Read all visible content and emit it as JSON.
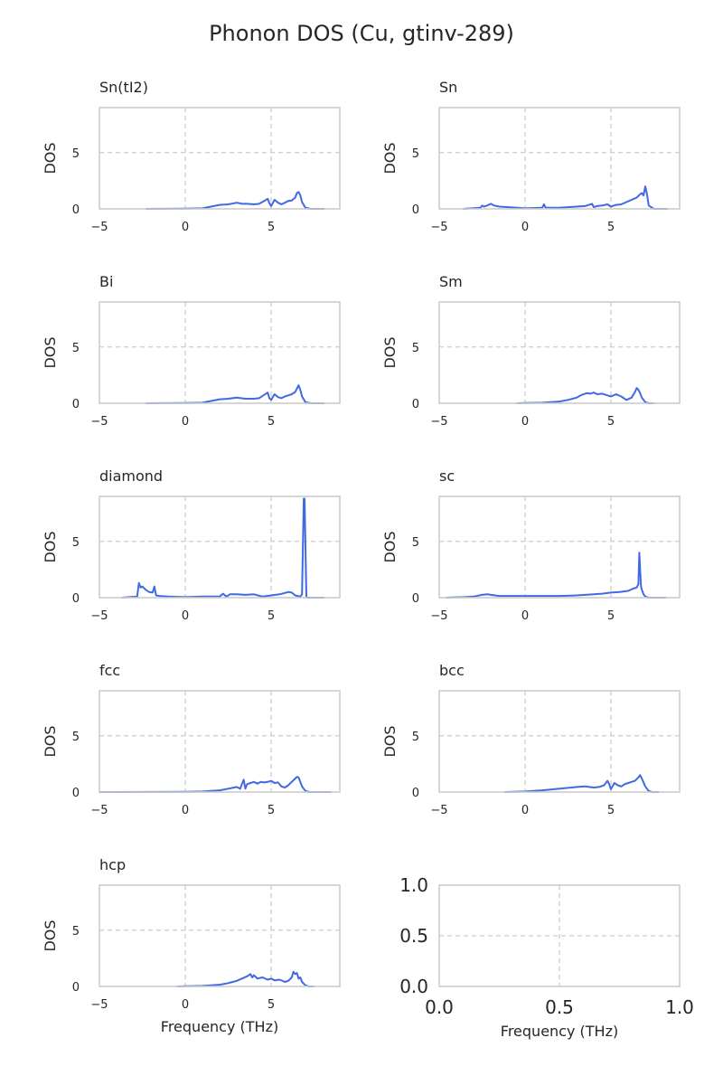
{
  "figure": {
    "title": "Phonon DOS (Cu, gtinv-289)",
    "line_color": "#4169e1",
    "frame_color": "#cccccc",
    "grid_color": "#cccccc"
  },
  "chart_data": [
    {
      "type": "line",
      "title": "Sn(tI2)",
      "ylabel": "DOS",
      "xlabel": "",
      "xlim": [
        -5,
        9
      ],
      "ylim": [
        0,
        9
      ],
      "xticks": [
        -5,
        0,
        5
      ],
      "yticks": [
        0,
        5
      ],
      "grid": true,
      "series": [
        {
          "x": [
            -2.3,
            0,
            1,
            1.5,
            2,
            2.5,
            3,
            3.3,
            3.6,
            4,
            4.3,
            4.6,
            4.8,
            4.9,
            5,
            5.2,
            5.4,
            5.6,
            5.8,
            6,
            6.2,
            6.4,
            6.5,
            6.6,
            6.7,
            6.8,
            7,
            7.3,
            8.1
          ],
          "y": [
            0,
            0.02,
            0.05,
            0.2,
            0.35,
            0.4,
            0.55,
            0.45,
            0.45,
            0.4,
            0.45,
            0.7,
            0.9,
            0.5,
            0.25,
            0.8,
            0.55,
            0.4,
            0.55,
            0.7,
            0.75,
            1.0,
            1.4,
            1.5,
            1.2,
            0.6,
            0.1,
            0,
            0
          ]
        }
      ]
    },
    {
      "type": "line",
      "title": "Sn",
      "ylabel": "DOS",
      "xlabel": "",
      "xlim": [
        -5,
        9
      ],
      "ylim": [
        0,
        9
      ],
      "xticks": [
        -5,
        0,
        5
      ],
      "yticks": [
        0,
        5
      ],
      "grid": true,
      "series": [
        {
          "x": [
            -3.6,
            -2.6,
            -2.5,
            -2.4,
            -2.2,
            -2,
            -1.8,
            -1.5,
            -1,
            0,
            1,
            1.1,
            1.2,
            2,
            3,
            3.5,
            3.9,
            4,
            4.2,
            4.5,
            4.8,
            5,
            5.3,
            5.6,
            5.9,
            6.2,
            6.5,
            6.7,
            6.8,
            6.9,
            7,
            7.1,
            7.2,
            7.5,
            8.3
          ],
          "y": [
            0,
            0.1,
            0.3,
            0.2,
            0.3,
            0.45,
            0.3,
            0.2,
            0.15,
            0.05,
            0.1,
            0.4,
            0.1,
            0.1,
            0.2,
            0.25,
            0.45,
            0.15,
            0.25,
            0.3,
            0.4,
            0.2,
            0.35,
            0.4,
            0.6,
            0.8,
            1.0,
            1.3,
            1.4,
            1.2,
            2.0,
            1.3,
            0.3,
            0,
            0
          ]
        }
      ]
    },
    {
      "type": "line",
      "title": "Bi",
      "ylabel": "DOS",
      "xlabel": "",
      "xlim": [
        -5,
        9
      ],
      "ylim": [
        0,
        9
      ],
      "xticks": [
        -5,
        0,
        5
      ],
      "yticks": [
        0,
        5
      ],
      "grid": true,
      "series": [
        {
          "x": [
            -2.3,
            0,
            1,
            1.5,
            2,
            2.5,
            3,
            3.5,
            4,
            4.3,
            4.6,
            4.8,
            4.9,
            5,
            5.2,
            5.4,
            5.6,
            5.8,
            6,
            6.2,
            6.4,
            6.5,
            6.6,
            6.7,
            6.8,
            7,
            7.3,
            8.1
          ],
          "y": [
            0,
            0.02,
            0.05,
            0.2,
            0.35,
            0.4,
            0.5,
            0.4,
            0.4,
            0.45,
            0.75,
            0.95,
            0.45,
            0.3,
            0.8,
            0.55,
            0.45,
            0.6,
            0.7,
            0.8,
            1.0,
            1.3,
            1.6,
            1.2,
            0.6,
            0.1,
            0,
            0
          ]
        }
      ]
    },
    {
      "type": "line",
      "title": "Sm",
      "ylabel": "DOS",
      "xlabel": "",
      "xlim": [
        -5,
        9
      ],
      "ylim": [
        0,
        9
      ],
      "xticks": [
        -5,
        0,
        5
      ],
      "yticks": [
        0,
        5
      ],
      "grid": true,
      "series": [
        {
          "x": [
            -0.5,
            0,
            1,
            2,
            2.5,
            3,
            3.3,
            3.6,
            3.8,
            4,
            4.2,
            4.5,
            4.8,
            5,
            5.3,
            5.6,
            5.9,
            6.2,
            6.4,
            6.5,
            6.6,
            6.7,
            6.8,
            7,
            7.2,
            7.5
          ],
          "y": [
            0,
            0.02,
            0.05,
            0.15,
            0.3,
            0.5,
            0.75,
            0.9,
            0.85,
            0.95,
            0.8,
            0.85,
            0.7,
            0.6,
            0.8,
            0.6,
            0.3,
            0.5,
            1.0,
            1.35,
            1.2,
            0.9,
            0.5,
            0.1,
            0,
            0
          ]
        }
      ]
    },
    {
      "type": "line",
      "title": "diamond",
      "ylabel": "DOS",
      "xlabel": "",
      "xlim": [
        -5,
        9
      ],
      "ylim": [
        0,
        9
      ],
      "xticks": [
        -5,
        0,
        5
      ],
      "yticks": [
        0,
        5
      ],
      "grid": true,
      "series": [
        {
          "x": [
            -3.7,
            -2.8,
            -2.7,
            -2.6,
            -2.5,
            -2.3,
            -2.1,
            -1.9,
            -1.8,
            -1.7,
            -1.5,
            -1,
            0,
            1,
            2,
            2.2,
            2.4,
            2.6,
            3,
            3.5,
            4,
            4.5,
            5,
            5.5,
            6,
            6.2,
            6.4,
            6.7,
            6.8,
            6.9,
            6.95,
            7.05,
            7.1,
            7.5,
            8.1
          ],
          "y": [
            0,
            0.1,
            1.3,
            0.9,
            1.0,
            0.7,
            0.5,
            0.45,
            1.0,
            0.2,
            0.15,
            0.1,
            0.05,
            0.1,
            0.1,
            0.35,
            0.1,
            0.3,
            0.3,
            0.25,
            0.3,
            0.1,
            0.2,
            0.3,
            0.5,
            0.45,
            0.2,
            0.1,
            0.3,
            8.8,
            8.8,
            0.1,
            0,
            0,
            0
          ]
        }
      ]
    },
    {
      "type": "line",
      "title": "sc",
      "ylabel": "DOS",
      "xlabel": "",
      "xlim": [
        -5,
        9
      ],
      "ylim": [
        0,
        9
      ],
      "xticks": [
        -5,
        0,
        5
      ],
      "yticks": [
        0,
        5
      ],
      "grid": true,
      "series": [
        {
          "x": [
            -4.6,
            -3.5,
            -3,
            -2.5,
            -2.2,
            -2,
            -1.5,
            -1,
            0,
            1,
            2,
            3,
            4,
            4.5,
            5,
            5.5,
            6,
            6.3,
            6.5,
            6.6,
            6.65,
            6.7,
            6.75,
            6.8,
            6.9,
            7,
            7.2,
            7.5,
            8.2
          ],
          "y": [
            0,
            0.05,
            0.1,
            0.25,
            0.3,
            0.25,
            0.15,
            0.15,
            0.15,
            0.15,
            0.15,
            0.2,
            0.3,
            0.35,
            0.45,
            0.5,
            0.6,
            0.8,
            0.9,
            1.2,
            4.0,
            2.5,
            1.0,
            0.7,
            0.3,
            0.1,
            0,
            0,
            0
          ]
        }
      ]
    },
    {
      "type": "line",
      "title": "fcc",
      "ylabel": "DOS",
      "xlabel": "",
      "xlim": [
        -5,
        9
      ],
      "ylim": [
        0,
        9
      ],
      "xticks": [
        -5,
        0,
        5
      ],
      "yticks": [
        0,
        5
      ],
      "grid": true,
      "series": [
        {
          "x": [
            -5,
            0,
            1,
            2,
            2.5,
            3,
            3.2,
            3.4,
            3.5,
            3.6,
            3.8,
            4,
            4.2,
            4.4,
            4.6,
            4.8,
            5,
            5.2,
            5.4,
            5.6,
            5.8,
            6,
            6.2,
            6.4,
            6.5,
            6.6,
            6.7,
            6.8,
            7,
            7.2,
            7.5,
            8.5
          ],
          "y": [
            0,
            0.02,
            0.05,
            0.15,
            0.3,
            0.45,
            0.3,
            1.1,
            0.3,
            0.7,
            0.8,
            0.9,
            0.75,
            0.9,
            0.85,
            0.9,
            1.0,
            0.8,
            0.85,
            0.5,
            0.4,
            0.6,
            0.9,
            1.2,
            1.35,
            1.3,
            0.9,
            0.5,
            0.1,
            0,
            0,
            0
          ]
        }
      ]
    },
    {
      "type": "line",
      "title": "bcc",
      "ylabel": "DOS",
      "xlabel": "",
      "xlim": [
        -5,
        9
      ],
      "ylim": [
        0,
        9
      ],
      "xticks": [
        -5,
        0,
        5
      ],
      "yticks": [
        0,
        5
      ],
      "grid": true,
      "series": [
        {
          "x": [
            -1.2,
            0,
            1,
            2,
            3,
            3.5,
            4,
            4.3,
            4.6,
            4.8,
            4.9,
            5,
            5.2,
            5.4,
            5.6,
            5.8,
            6,
            6.2,
            6.4,
            6.6,
            6.7,
            6.8,
            7,
            7.2,
            7.4,
            7.8
          ],
          "y": [
            0,
            0.05,
            0.15,
            0.3,
            0.45,
            0.5,
            0.4,
            0.45,
            0.6,
            1.0,
            0.7,
            0.25,
            0.8,
            0.6,
            0.5,
            0.7,
            0.8,
            0.9,
            1.0,
            1.3,
            1.5,
            1.2,
            0.5,
            0.1,
            0,
            0
          ]
        }
      ]
    },
    {
      "type": "line",
      "title": "hcp",
      "ylabel": "DOS",
      "xlabel": "Frequency (THz)",
      "xlim": [
        -5,
        9
      ],
      "ylim": [
        0,
        9
      ],
      "xticks": [
        -5,
        0,
        5
      ],
      "yticks": [
        0,
        5
      ],
      "grid": true,
      "series": [
        {
          "x": [
            -0.5,
            0,
            1,
            2,
            2.5,
            3,
            3.3,
            3.6,
            3.8,
            3.9,
            4,
            4.2,
            4.5,
            4.8,
            5,
            5.2,
            5.5,
            5.8,
            6,
            6.2,
            6.3,
            6.4,
            6.5,
            6.6,
            6.7,
            6.8,
            7,
            7.2,
            7.5
          ],
          "y": [
            0,
            0.02,
            0.05,
            0.15,
            0.3,
            0.5,
            0.7,
            0.9,
            1.1,
            0.8,
            1.0,
            0.7,
            0.8,
            0.6,
            0.7,
            0.55,
            0.6,
            0.4,
            0.5,
            0.8,
            1.3,
            1.1,
            1.2,
            0.7,
            0.8,
            0.4,
            0.1,
            0,
            0
          ]
        }
      ]
    },
    {
      "type": "line",
      "title": "",
      "ylabel": "",
      "xlabel": "Frequency (THz)",
      "xlim": [
        0,
        1
      ],
      "ylim": [
        0,
        1
      ],
      "xticks": [
        0,
        0.5,
        1
      ],
      "yticks": [
        0,
        0.5,
        1
      ],
      "xticklabels": [
        "0.0",
        "0.5",
        "1.0"
      ],
      "yticklabels": [
        "0.0",
        "0.5",
        "1.0"
      ],
      "grid": true,
      "series": []
    }
  ]
}
